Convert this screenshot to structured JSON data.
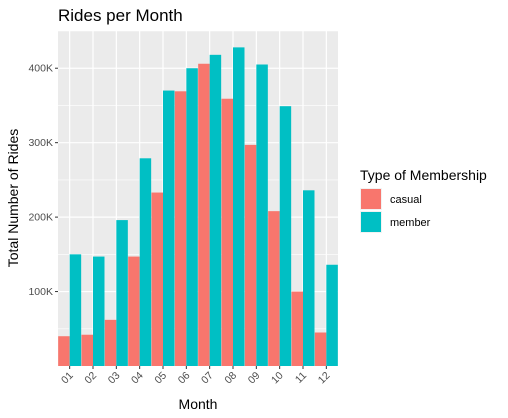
{
  "chart_data": {
    "type": "bar",
    "title": "Rides per Month",
    "xlabel": "Month",
    "ylabel": "Total Number of Rides",
    "categories": [
      "01",
      "02",
      "03",
      "04",
      "05",
      "06",
      "07",
      "08",
      "09",
      "10",
      "11",
      "12"
    ],
    "series": [
      {
        "name": "casual",
        "color": "#F8766D",
        "values": [
          40000,
          42000,
          62000,
          147000,
          233000,
          369000,
          406000,
          359000,
          297000,
          208000,
          100000,
          45000
        ]
      },
      {
        "name": "member",
        "color": "#00BFC4",
        "values": [
          150000,
          147000,
          196000,
          279000,
          370000,
          400000,
          418000,
          428000,
          405000,
          349000,
          236000,
          136000
        ]
      }
    ],
    "yticks": [
      100000,
      200000,
      300000,
      400000
    ],
    "ytick_labels": [
      "100K",
      "200K",
      "300K",
      "400K"
    ],
    "ylim": [
      0,
      450000
    ],
    "grid": true,
    "legend": {
      "title": "Type of Membership",
      "placement": "right"
    },
    "panel_background": "#EBEBEB",
    "grid_color": "#FFFFFF"
  }
}
